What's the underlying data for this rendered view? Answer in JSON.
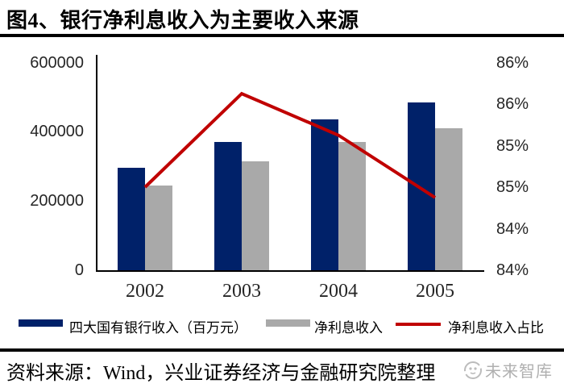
{
  "title": "图4、银行净利息收入为主要收入来源",
  "source_line": "资料来源：Wind，兴业证券经济与金融研究院整理",
  "watermark": {
    "text": "未来智库",
    "icon": "brand-circle-face-icon",
    "color": "#b0b0b0"
  },
  "colors": {
    "bar_primary": "#002169",
    "bar_secondary": "#a9a9a9",
    "line": "#c00000",
    "axis": "#000000",
    "rule": "#000000"
  },
  "chart_data": {
    "type": "bar",
    "subtype": "bar+line-combo",
    "categories": [
      "2002",
      "2003",
      "2004",
      "2005"
    ],
    "series": [
      {
        "name": "四大国有银行收入（百万元）",
        "type": "bar",
        "axis": "left",
        "color": "#002169",
        "values": [
          295000,
          370000,
          435000,
          485000
        ]
      },
      {
        "name": "净利息收入",
        "type": "bar",
        "axis": "left",
        "color": "#a9a9a9",
        "values": [
          245000,
          315000,
          370000,
          410000
        ]
      },
      {
        "name": "净利息收入占比",
        "type": "line",
        "axis": "right",
        "color": "#c00000",
        "values_pct": [
          84.8,
          85.7,
          85.3,
          84.7
        ]
      }
    ],
    "left_axis": {
      "min": 0,
      "max": 600000,
      "tick_labels": [
        "600000",
        "400000",
        "200000",
        "0"
      ]
    },
    "right_axis": {
      "min": 84,
      "max": 86,
      "tick_labels": [
        "86%",
        "86%",
        "85%",
        "85%",
        "84%",
        "84%"
      ]
    },
    "legend_position": "bottom",
    "grid": false,
    "title": "图4、银行净利息收入为主要收入来源"
  }
}
